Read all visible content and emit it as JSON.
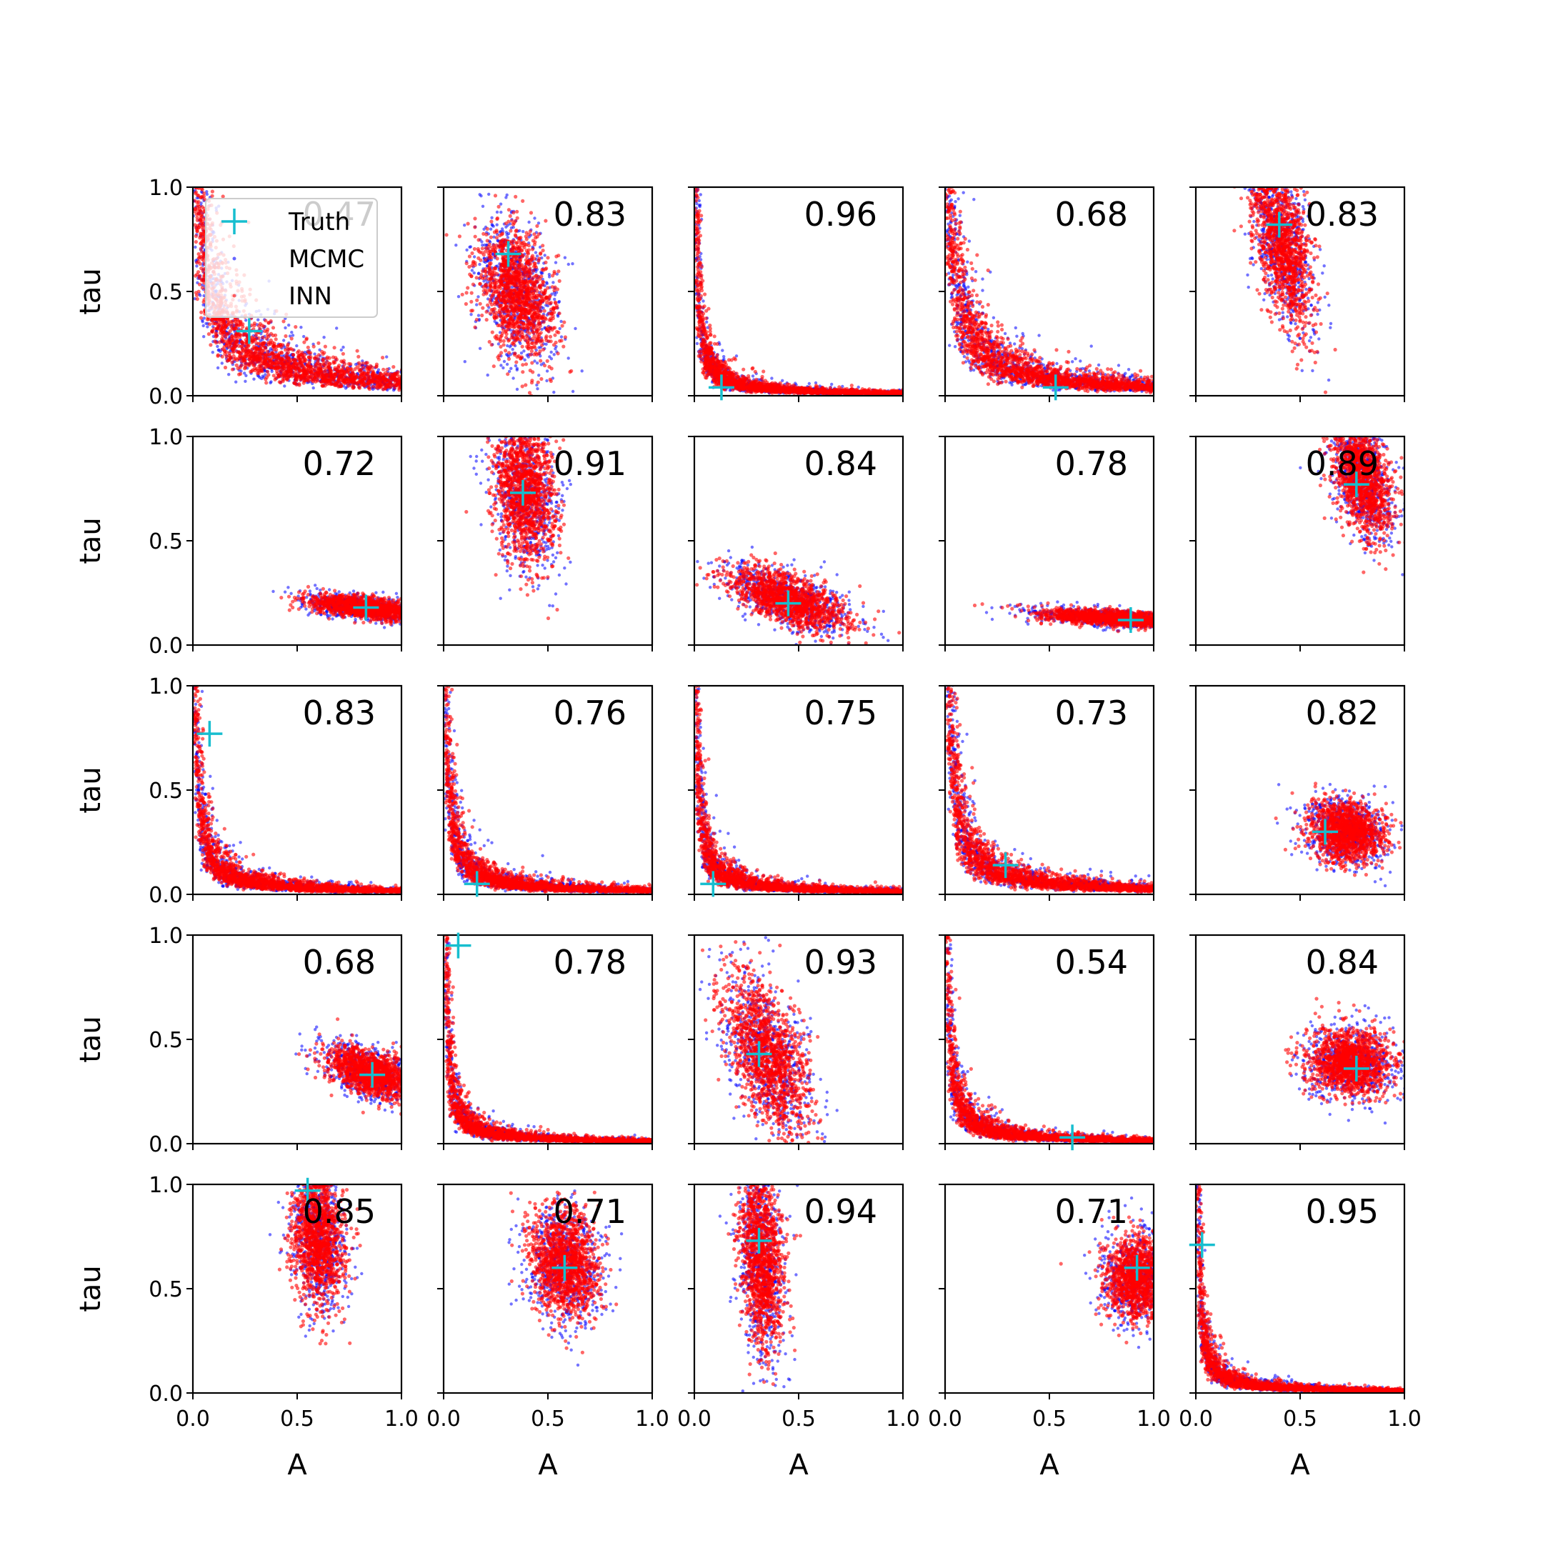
{
  "chart_data": {
    "type": "scatter",
    "grid": false,
    "layout": "5x5 grid of scatter panels",
    "xlabel": "A",
    "ylabel": "tau",
    "xlim": [
      0,
      1
    ],
    "ylim": [
      0,
      1
    ],
    "x_ticks": [
      "0.0",
      "0.5",
      "1.0"
    ],
    "y_ticks": [
      "0.0",
      "0.5",
      "1.0"
    ],
    "legend": {
      "placement": "upper-left of first panel",
      "entries": [
        {
          "label": "Truth",
          "marker": "plus",
          "color": "#17becf"
        },
        {
          "label": "MCMC",
          "marker": "dot",
          "color": "#0000ff"
        },
        {
          "label": "INN",
          "marker": "dot",
          "color": "#ff0000"
        }
      ]
    },
    "colors": {
      "mcmc": "#0000ff",
      "inn": "#ff0000",
      "truth": "#17becf"
    },
    "panels": [
      {
        "score": "0.47",
        "shape": "curve",
        "k": 0.07,
        "a0": 0.07,
        "truth": [
          0.27,
          0.31
        ]
      },
      {
        "score": "0.83",
        "shape": "blob",
        "center": [
          0.35,
          0.5
        ],
        "spread": [
          0.08,
          0.16
        ],
        "rot": 0.25,
        "truth": [
          0.31,
          0.68
        ]
      },
      {
        "score": "0.96",
        "shape": "curve",
        "k": 0.012,
        "a0": 0.012,
        "truth": [
          0.13,
          0.04
        ]
      },
      {
        "score": "0.68",
        "shape": "curve",
        "k": 0.045,
        "a0": 0.045,
        "truth": [
          0.53,
          0.04
        ]
      },
      {
        "score": "0.83",
        "shape": "blob",
        "center": [
          0.41,
          0.75
        ],
        "spread": [
          0.06,
          0.21
        ],
        "rot": 0.2,
        "truth": [
          0.4,
          0.82
        ]
      },
      {
        "score": "0.72",
        "shape": "blob",
        "center": [
          0.82,
          0.18
        ],
        "spread": [
          0.13,
          0.025
        ],
        "rot": -0.12,
        "truth": [
          0.83,
          0.18
        ]
      },
      {
        "score": "0.91",
        "shape": "blob",
        "center": [
          0.39,
          0.72
        ],
        "spread": [
          0.07,
          0.17
        ],
        "rot": 0.1,
        "truth": [
          0.38,
          0.73
        ]
      },
      {
        "score": "0.84",
        "shape": "blob",
        "center": [
          0.45,
          0.22
        ],
        "spread": [
          0.15,
          0.055
        ],
        "rot": -0.38,
        "truth": [
          0.45,
          0.2
        ]
      },
      {
        "score": "0.78",
        "shape": "blob",
        "center": [
          0.8,
          0.13
        ],
        "spread": [
          0.17,
          0.018
        ],
        "rot": -0.06,
        "truth": [
          0.89,
          0.12
        ]
      },
      {
        "score": "0.89",
        "shape": "blob",
        "center": [
          0.8,
          0.8
        ],
        "spread": [
          0.06,
          0.15
        ],
        "rot": 0.25,
        "truth": [
          0.77,
          0.77
        ]
      },
      {
        "score": "0.83",
        "shape": "curve",
        "k": 0.018,
        "a0": 0.02,
        "truth": [
          0.08,
          0.77
        ]
      },
      {
        "score": "0.76",
        "shape": "curve",
        "k": 0.018,
        "a0": 0.015,
        "truth": [
          0.16,
          0.05
        ]
      },
      {
        "score": "0.75",
        "shape": "curve",
        "k": 0.014,
        "a0": 0.012,
        "truth": [
          0.09,
          0.05
        ]
      },
      {
        "score": "0.73",
        "shape": "curve",
        "k": 0.028,
        "a0": 0.06,
        "truth": [
          0.29,
          0.14
        ]
      },
      {
        "score": "0.82",
        "shape": "blob",
        "center": [
          0.72,
          0.3
        ],
        "spread": [
          0.09,
          0.07
        ],
        "rot": -0.3,
        "truth": [
          0.62,
          0.3
        ]
      },
      {
        "score": "0.68",
        "shape": "blob",
        "center": [
          0.85,
          0.34
        ],
        "spread": [
          0.11,
          0.05
        ],
        "rot": -0.35,
        "truth": [
          0.86,
          0.33
        ]
      },
      {
        "score": "0.78",
        "shape": "curve",
        "k": 0.012,
        "a0": 0.015,
        "truth": [
          0.07,
          0.95
        ]
      },
      {
        "score": "0.93",
        "shape": "blob",
        "center": [
          0.35,
          0.42
        ],
        "spread": [
          0.08,
          0.2
        ],
        "rot": 0.35,
        "truth": [
          0.31,
          0.43
        ]
      },
      {
        "score": "0.54",
        "shape": "curve",
        "k": 0.015,
        "a0": 0.015,
        "truth": [
          0.61,
          0.03
        ]
      },
      {
        "score": "0.84",
        "shape": "blob",
        "center": [
          0.74,
          0.39
        ],
        "spread": [
          0.1,
          0.08
        ],
        "rot": -0.15,
        "truth": [
          0.77,
          0.36
        ]
      },
      {
        "score": "0.85",
        "shape": "blob",
        "center": [
          0.6,
          0.75
        ],
        "spread": [
          0.06,
          0.16
        ],
        "rot": 0.05,
        "truth": [
          0.55,
          0.97
        ]
      },
      {
        "score": "0.71",
        "shape": "blob",
        "center": [
          0.58,
          0.62
        ],
        "spread": [
          0.08,
          0.13
        ],
        "rot": 0.15,
        "truth": [
          0.58,
          0.6
        ]
      },
      {
        "score": "0.94",
        "shape": "blob",
        "center": [
          0.32,
          0.65
        ],
        "spread": [
          0.05,
          0.22
        ],
        "rot": 0.05,
        "truth": [
          0.31,
          0.73
        ]
      },
      {
        "score": "0.71",
        "shape": "blob",
        "center": [
          0.93,
          0.55
        ],
        "spread": [
          0.08,
          0.1
        ],
        "rot": 0.0,
        "truth": [
          0.92,
          0.6
        ]
      },
      {
        "score": "0.95",
        "shape": "curve",
        "k": 0.011,
        "a0": 0.01,
        "truth": [
          0.03,
          0.71
        ]
      }
    ]
  }
}
